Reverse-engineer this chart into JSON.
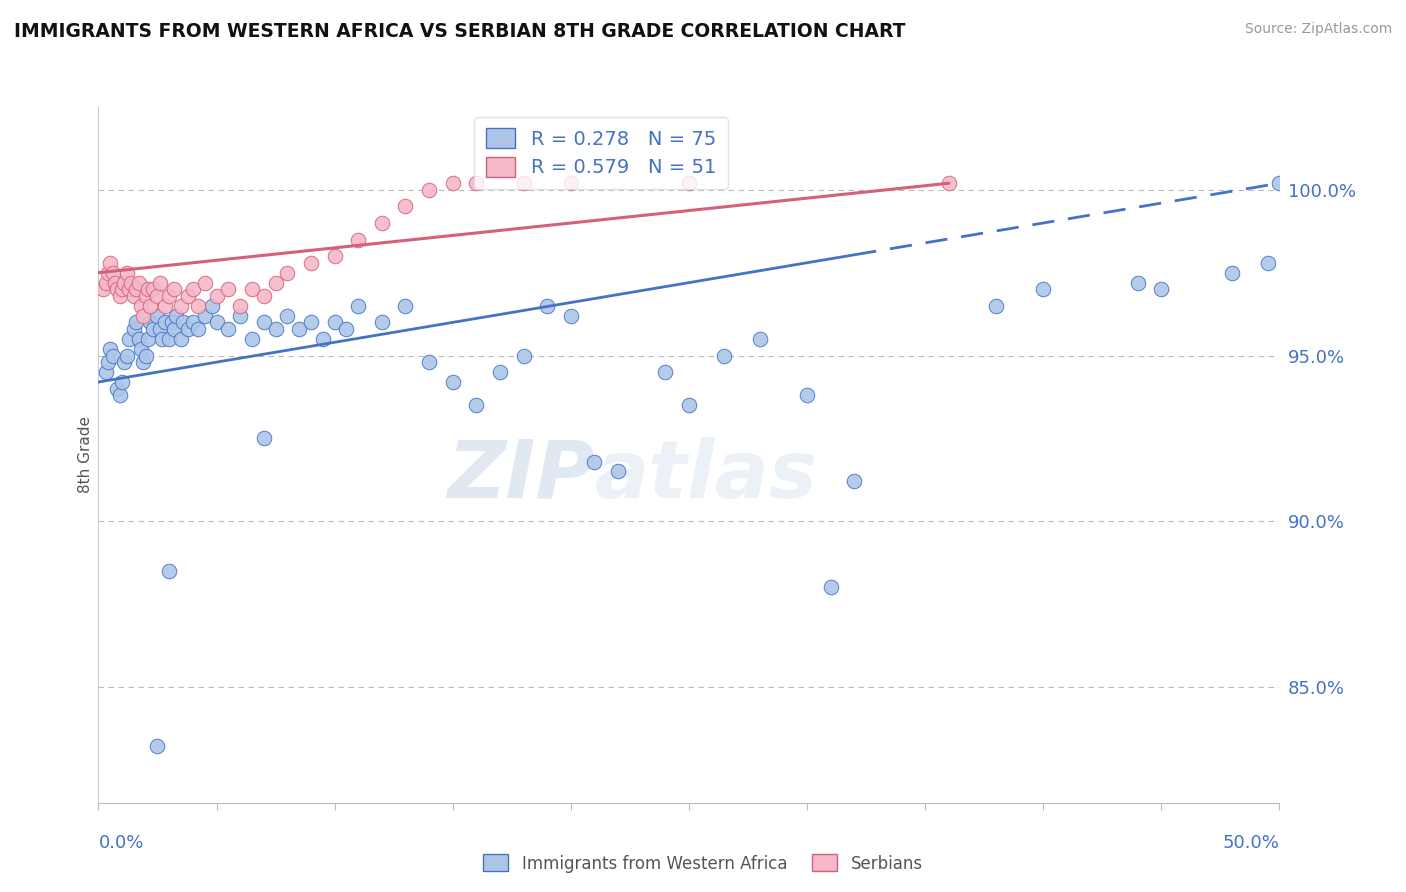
{
  "title": "IMMIGRANTS FROM WESTERN AFRICA VS SERBIAN 8TH GRADE CORRELATION CHART",
  "source": "Source: ZipAtlas.com",
  "ylabel": "8th Grade",
  "ylabel_right_ticks": [
    85.0,
    90.0,
    95.0,
    100.0
  ],
  "xlim": [
    0.0,
    50.0
  ],
  "ylim": [
    81.5,
    102.5
  ],
  "blue_color": "#adc6e8",
  "pink_color": "#f4b8c8",
  "blue_line_color": "#4472c4",
  "pink_line_color": "#d4607a",
  "legend_blue_label": "R = 0.278   N = 75",
  "legend_pink_label": "R = 0.579   N = 51",
  "legend_label_blue": "Immigrants from Western Africa",
  "legend_label_pink": "Serbians",
  "background_color": "#ffffff",
  "watermark_text": "ZIPatlas",
  "blue_trend_x": [
    0,
    50
  ],
  "blue_trend_y": [
    94.2,
    100.2
  ],
  "blue_trend_solid_end": 32,
  "pink_trend_x": [
    0,
    36
  ],
  "pink_trend_y": [
    97.5,
    100.2
  ],
  "blue_scatter_x": [
    0.3,
    0.4,
    0.5,
    0.6,
    0.8,
    0.9,
    1.0,
    1.1,
    1.2,
    1.3,
    1.5,
    1.6,
    1.7,
    1.8,
    1.9,
    2.0,
    2.1,
    2.2,
    2.3,
    2.5,
    2.6,
    2.7,
    2.8,
    3.0,
    3.1,
    3.2,
    3.3,
    3.5,
    3.6,
    3.8,
    4.0,
    4.2,
    4.5,
    4.8,
    5.0,
    5.5,
    6.0,
    6.5,
    7.0,
    7.5,
    8.0,
    8.5,
    9.0,
    9.5,
    10.0,
    10.5,
    11.0,
    12.0,
    13.0,
    14.0,
    15.0,
    16.0,
    17.0,
    18.0,
    19.0,
    20.0,
    21.0,
    22.0,
    24.0,
    25.0,
    26.5,
    28.0,
    30.0,
    31.0,
    32.0,
    38.0,
    40.0,
    44.0,
    45.0,
    48.0,
    49.5,
    50.0,
    2.5,
    3.0,
    7.0
  ],
  "blue_scatter_y": [
    94.5,
    94.8,
    95.2,
    95.0,
    94.0,
    93.8,
    94.2,
    94.8,
    95.0,
    95.5,
    95.8,
    96.0,
    95.5,
    95.2,
    94.8,
    95.0,
    95.5,
    96.0,
    95.8,
    96.2,
    95.8,
    95.5,
    96.0,
    95.5,
    96.0,
    95.8,
    96.2,
    95.5,
    96.0,
    95.8,
    96.0,
    95.8,
    96.2,
    96.5,
    96.0,
    95.8,
    96.2,
    95.5,
    96.0,
    95.8,
    96.2,
    95.8,
    96.0,
    95.5,
    96.0,
    95.8,
    96.5,
    96.0,
    96.5,
    94.8,
    94.2,
    93.5,
    94.5,
    95.0,
    96.5,
    96.2,
    91.8,
    91.5,
    94.5,
    93.5,
    95.0,
    95.5,
    93.8,
    88.0,
    91.2,
    96.5,
    97.0,
    97.2,
    97.0,
    97.5,
    97.8,
    100.2,
    83.2,
    88.5,
    92.5
  ],
  "pink_scatter_x": [
    0.2,
    0.3,
    0.4,
    0.5,
    0.6,
    0.7,
    0.8,
    0.9,
    1.0,
    1.1,
    1.2,
    1.3,
    1.4,
    1.5,
    1.6,
    1.7,
    1.8,
    1.9,
    2.0,
    2.1,
    2.2,
    2.3,
    2.5,
    2.6,
    2.8,
    3.0,
    3.2,
    3.5,
    3.8,
    4.0,
    4.2,
    4.5,
    5.0,
    5.5,
    6.0,
    6.5,
    7.0,
    7.5,
    8.0,
    9.0,
    10.0,
    11.0,
    12.0,
    13.0,
    14.0,
    15.0,
    16.0,
    18.0,
    20.0,
    25.0,
    36.0
  ],
  "pink_scatter_y": [
    97.0,
    97.2,
    97.5,
    97.8,
    97.5,
    97.2,
    97.0,
    96.8,
    97.0,
    97.2,
    97.5,
    97.0,
    97.2,
    96.8,
    97.0,
    97.2,
    96.5,
    96.2,
    96.8,
    97.0,
    96.5,
    97.0,
    96.8,
    97.2,
    96.5,
    96.8,
    97.0,
    96.5,
    96.8,
    97.0,
    96.5,
    97.2,
    96.8,
    97.0,
    96.5,
    97.0,
    96.8,
    97.2,
    97.5,
    97.8,
    98.0,
    98.5,
    99.0,
    99.5,
    100.0,
    100.2,
    100.2,
    100.2,
    100.2,
    100.2,
    100.2
  ]
}
